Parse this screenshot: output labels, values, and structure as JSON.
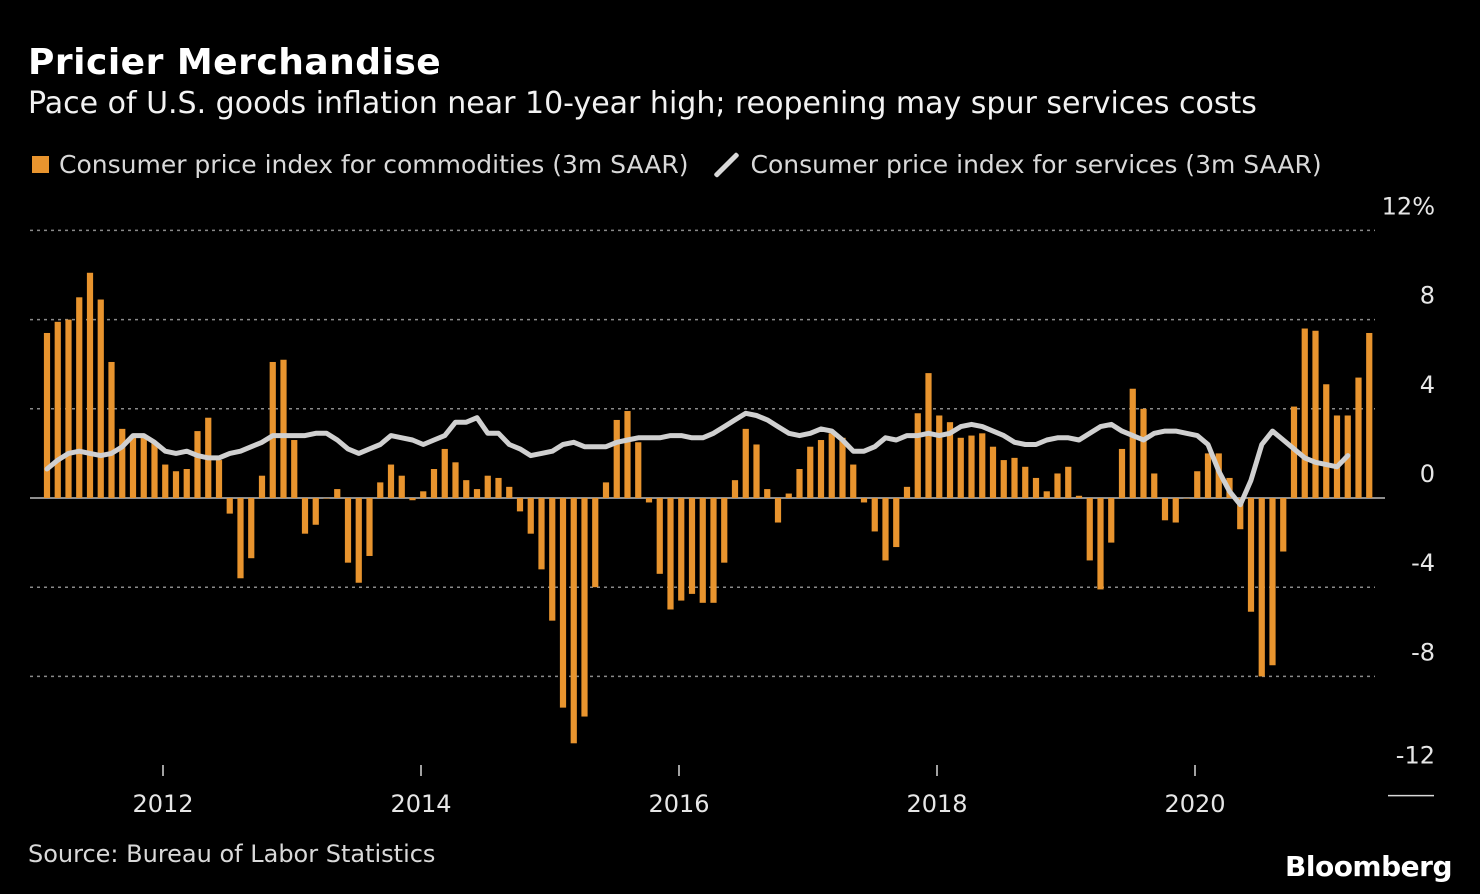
{
  "title": "Pricier Merchandise",
  "subtitle": "Pace of U.S. goods inflation near 10-year high; reopening may spur services costs",
  "legend": {
    "bars": "Consumer price index for commodities (3m SAAR)",
    "line": "Consumer price index for services (3m SAAR)"
  },
  "source": "Source: Bureau of Labor Statistics",
  "logo": "Bloomberg",
  "colors": {
    "bars": "#e8942e",
    "line": "#d0d0d0",
    "grid": "#8a8a8a"
  },
  "chart_data": {
    "type": "bar",
    "start": "2011-02",
    "frequency": "monthly",
    "ylim": [
      -12,
      12
    ],
    "yticks": [
      12,
      8,
      4,
      0,
      -4,
      -8,
      -12
    ],
    "ytick_labels": [
      "12%",
      "8",
      "4",
      "0",
      "-4",
      "-8",
      "-12"
    ],
    "xticks": [
      "2012",
      "2014",
      "2016",
      "2018",
      "2020"
    ],
    "grid": true,
    "series": [
      {
        "name": "Consumer price index for commodities (3m SAAR)",
        "type": "bar",
        "values": [
          7.4,
          7.9,
          8.0,
          9.0,
          10.1,
          8.9,
          6.1,
          3.1,
          2.8,
          2.7,
          2.5,
          1.5,
          1.2,
          1.3,
          3.0,
          3.6,
          1.7,
          -0.7,
          -3.6,
          -2.7,
          1.0,
          6.1,
          6.2,
          2.6,
          -1.6,
          -1.2,
          0.0,
          0.4,
          -2.9,
          -3.8,
          -2.6,
          0.7,
          1.5,
          1.0,
          -0.1,
          0.3,
          1.3,
          2.2,
          1.6,
          0.8,
          0.4,
          1.0,
          0.9,
          0.5,
          -0.6,
          -1.6,
          -3.2,
          -5.5,
          -9.4,
          -11.0,
          -9.8,
          -4.0,
          0.7,
          3.5,
          3.9,
          2.5,
          -0.2,
          -3.4,
          -5.0,
          -4.6,
          -4.3,
          -4.7,
          -4.7,
          -2.9,
          0.8,
          3.1,
          2.4,
          0.4,
          -1.1,
          0.2,
          1.3,
          2.3,
          2.6,
          2.9,
          2.7,
          1.5,
          -0.2,
          -1.5,
          -2.8,
          -2.2,
          0.5,
          3.8,
          5.6,
          3.7,
          3.4,
          2.7,
          2.8,
          2.9,
          2.3,
          1.7,
          1.8,
          1.4,
          0.9,
          0.3,
          1.1,
          1.4,
          0.1,
          -2.8,
          -4.1,
          -2.0,
          2.2,
          4.9,
          4.0,
          1.1,
          -1.0,
          -1.1,
          0.0,
          1.2,
          2.0,
          2.0,
          0.9,
          -1.4,
          -5.1,
          -8.0,
          -7.5,
          -2.4,
          4.1,
          7.6,
          7.5,
          5.1,
          3.7,
          3.7,
          5.4,
          7.4
        ]
      },
      {
        "name": "Consumer price index for services (3m SAAR)",
        "type": "line",
        "values": [
          1.3,
          1.7,
          2.0,
          2.1,
          2.0,
          1.9,
          2.0,
          2.3,
          2.8,
          2.8,
          2.5,
          2.1,
          2.0,
          2.1,
          1.9,
          1.8,
          1.8,
          2.0,
          2.1,
          2.3,
          2.5,
          2.8,
          2.8,
          2.8,
          2.8,
          2.9,
          2.9,
          2.6,
          2.2,
          2.0,
          2.2,
          2.4,
          2.8,
          2.7,
          2.6,
          2.4,
          2.6,
          2.8,
          3.4,
          3.4,
          3.6,
          2.9,
          2.9,
          2.4,
          2.2,
          1.9,
          2.0,
          2.1,
          2.4,
          2.5,
          2.3,
          2.3,
          2.3,
          2.5,
          2.6,
          2.7,
          2.7,
          2.7,
          2.8,
          2.8,
          2.7,
          2.7,
          2.9,
          3.2,
          3.5,
          3.8,
          3.7,
          3.5,
          3.2,
          2.9,
          2.8,
          2.9,
          3.1,
          3.0,
          2.6,
          2.1,
          2.1,
          2.3,
          2.7,
          2.6,
          2.8,
          2.8,
          2.9,
          2.8,
          2.9,
          3.2,
          3.3,
          3.2,
          3.0,
          2.8,
          2.5,
          2.4,
          2.4,
          2.6,
          2.7,
          2.7,
          2.6,
          2.9,
          3.2,
          3.3,
          3.0,
          2.8,
          2.6,
          2.9,
          3.0,
          3.0,
          2.9,
          2.8,
          2.4,
          1.2,
          0.3,
          -0.3,
          0.8,
          2.4,
          3.0,
          2.6,
          2.2,
          1.8,
          1.6,
          1.5,
          1.4,
          1.9
        ]
      }
    ]
  }
}
